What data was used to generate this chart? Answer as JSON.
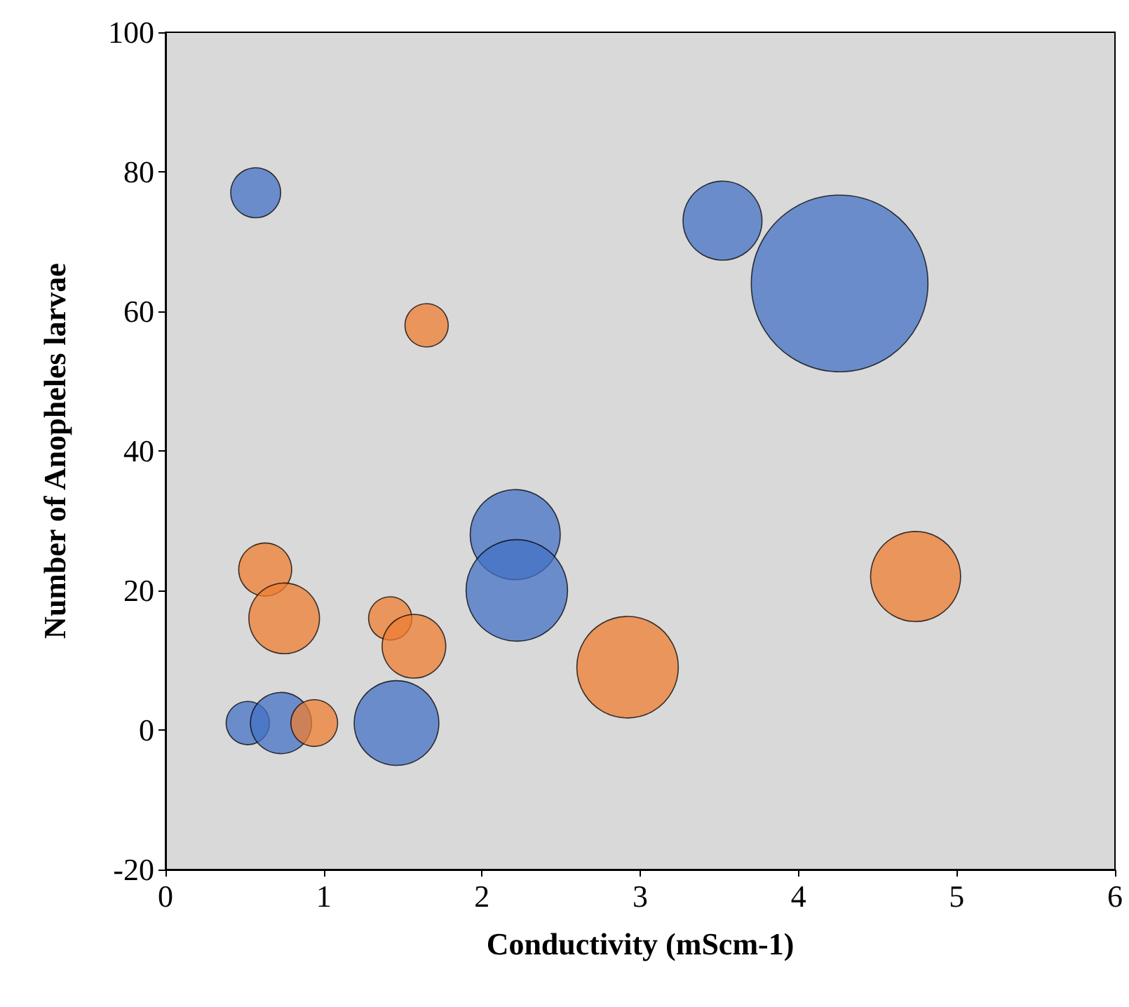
{
  "chart_data": {
    "type": "bubble",
    "xlabel": "Conductivity (mScm-1)",
    "ylabel": "Number of Anopheles larvae",
    "xlim": [
      0,
      6
    ],
    "xticks": [
      0,
      1,
      2,
      3,
      4,
      5,
      6
    ],
    "ylim": [
      -20,
      100
    ],
    "yticks": [
      -20,
      0,
      20,
      40,
      60,
      80,
      100
    ],
    "grid": false,
    "series": [
      {
        "color": "#4472c4",
        "x": [
          0.57,
          3.52,
          4.26,
          2.21,
          2.22,
          1.46,
          0.52,
          0.73
        ],
        "values": [
          77,
          73,
          64,
          28,
          20,
          1,
          1,
          1
        ],
        "sizes": [
          0.08,
          0.2,
          1,
          0.26,
          0.33,
          0.23,
          0.06,
          0.12
        ]
      },
      {
        "color": "#ed7d31",
        "x": [
          1.65,
          0.63,
          0.75,
          1.42,
          1.57,
          2.92,
          4.74,
          0.94
        ],
        "values": [
          58,
          23,
          16,
          16,
          12,
          9,
          22,
          1
        ],
        "sizes": [
          0.06,
          0.09,
          0.16,
          0.06,
          0.13,
          0.33,
          0.26,
          0.07
        ]
      }
    ]
  }
}
